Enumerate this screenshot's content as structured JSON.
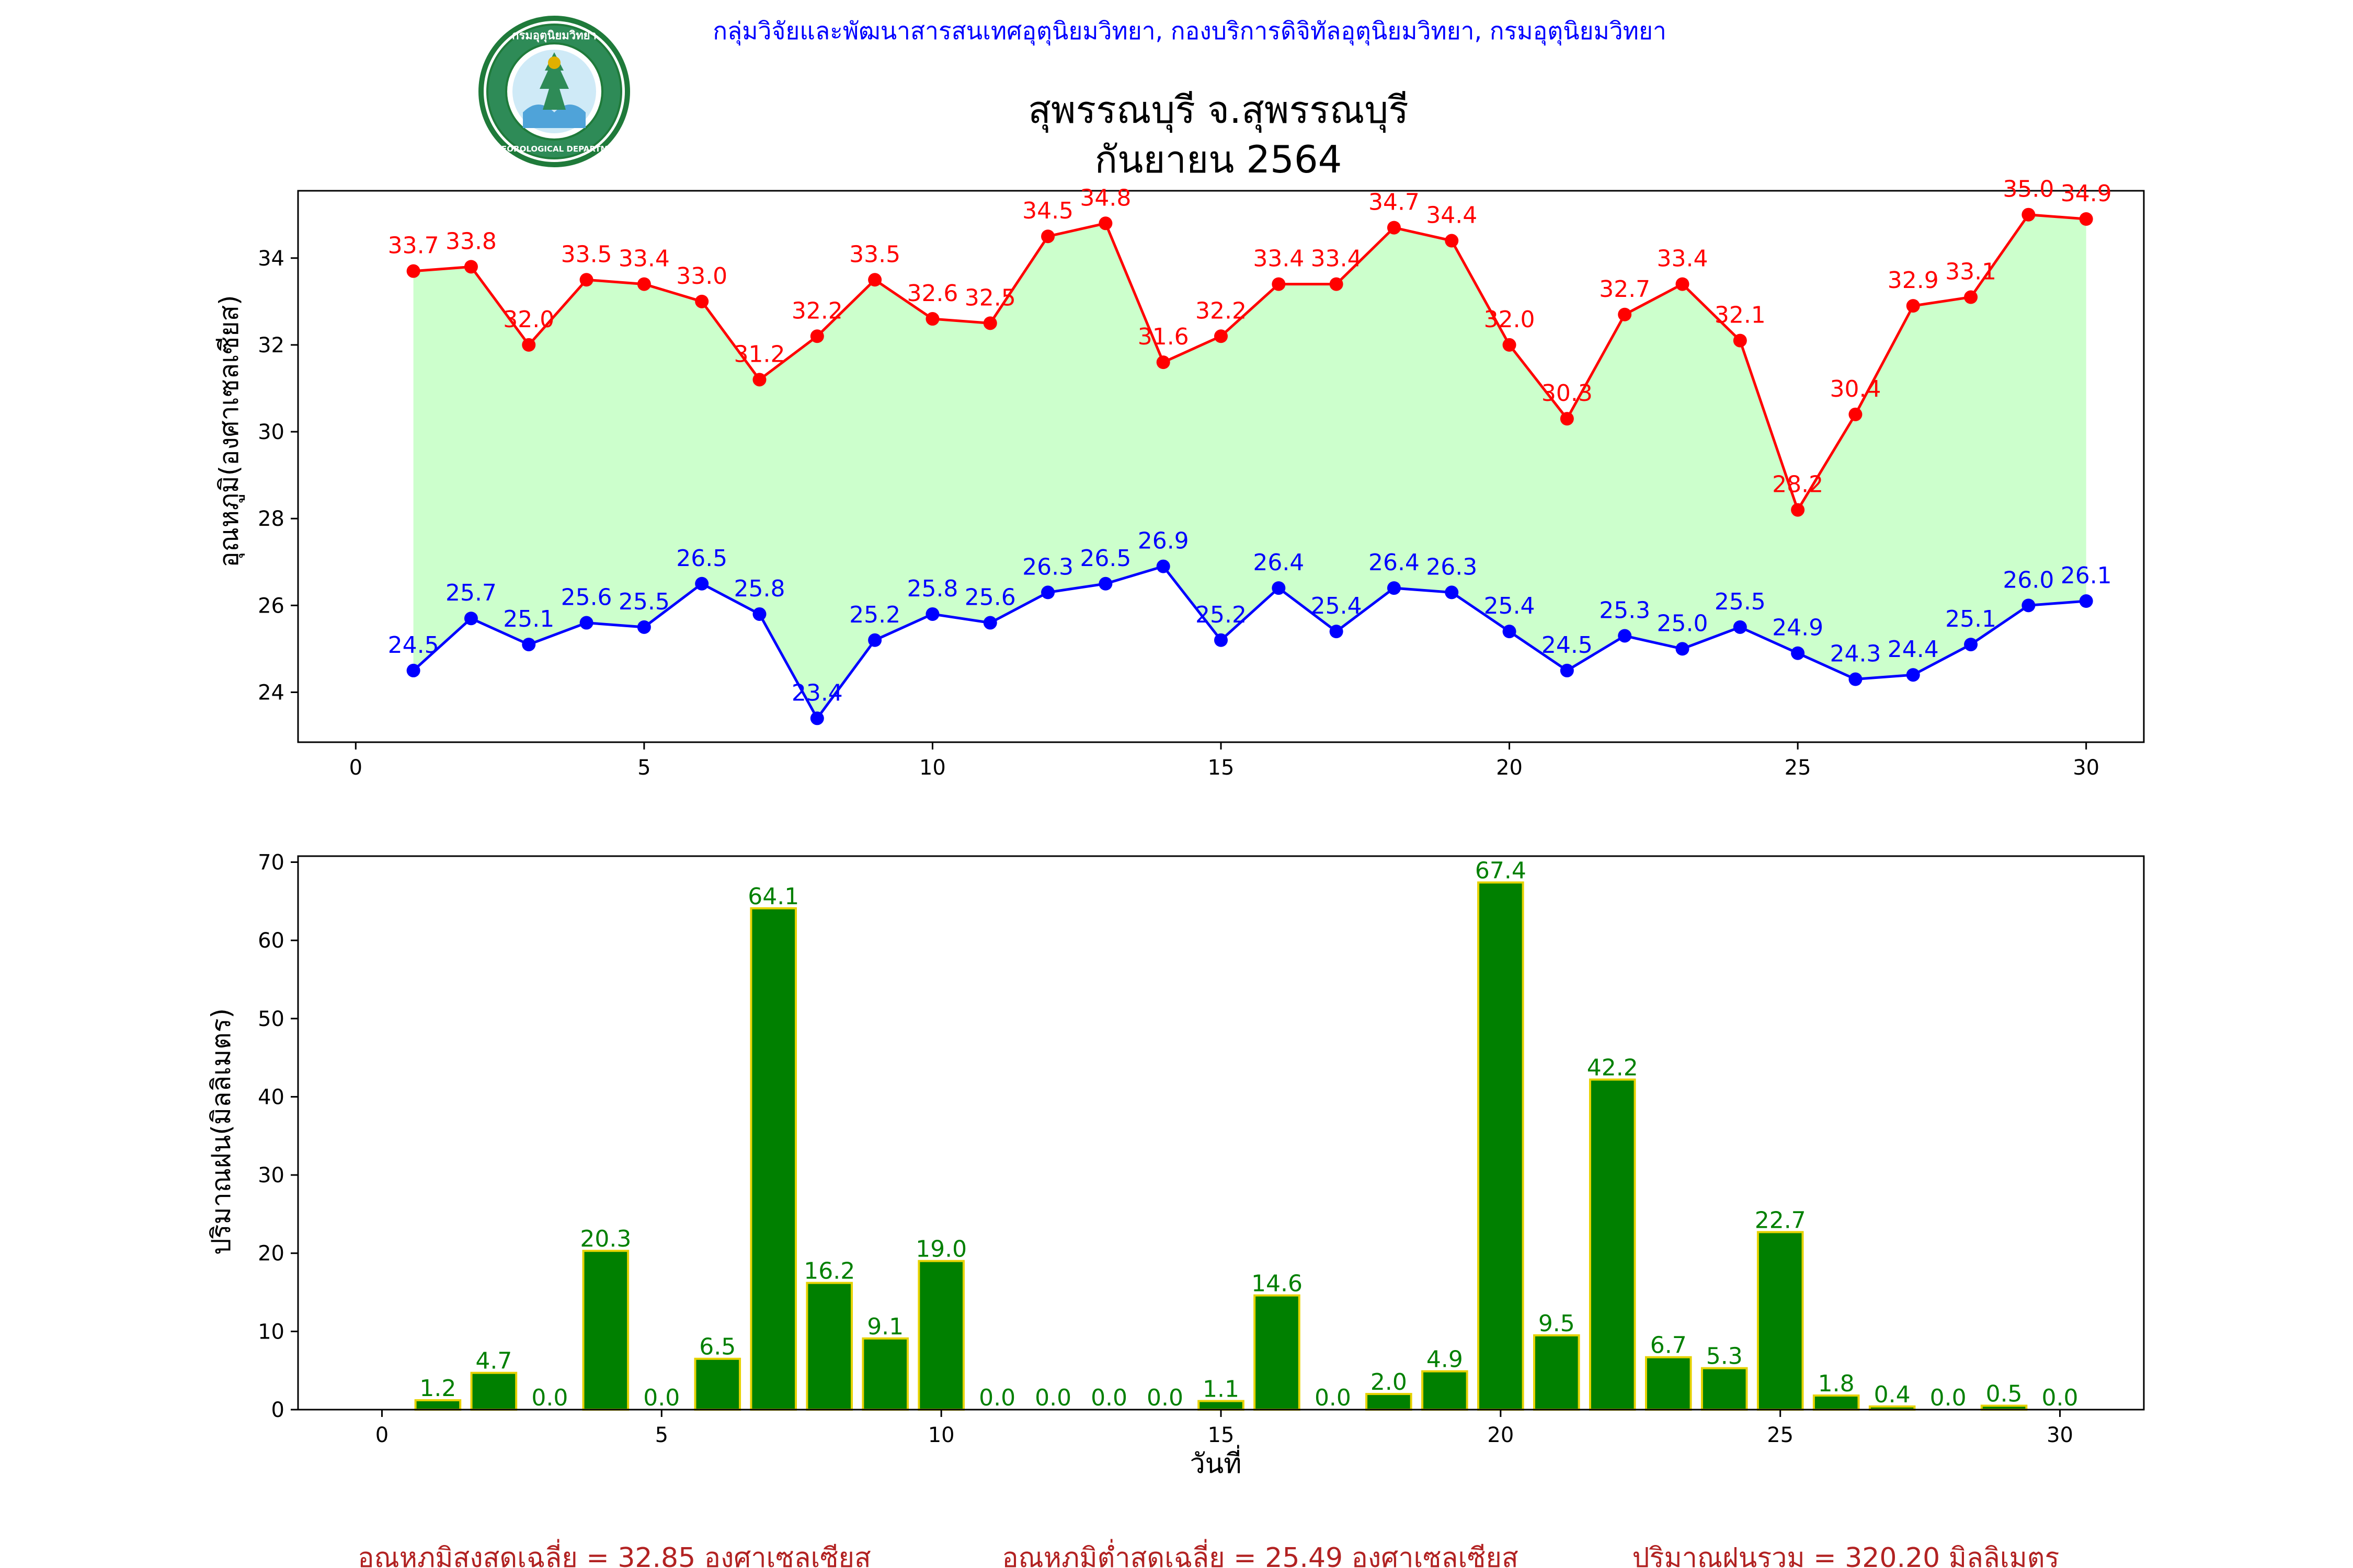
{
  "header": {
    "org_line": "กลุ่มวิจัยและพัฒนาสารสนเทศอุตุนิยมวิทยา, กองบริการดิจิทัลอุตุนิยมวิทยา, กรมอุตุนิยมวิทยา",
    "title_line1": "สุพรรณบุรี จ.สุพรรณบุรี",
    "title_line2": "กันยายน 2564",
    "logo_top_text": "กรมอุตุนิยมวิทยา",
    "logo_bottom_text": "METEOROLOGICAL DEPARTMENT"
  },
  "colors": {
    "max_temp": "#ff0000",
    "min_temp": "#0000ff",
    "fill": "#ccffcc",
    "rain_bar": "#008000",
    "rain_edge": "#e6d200",
    "rain_label": "#008000",
    "org_line": "#0000ff",
    "footer": "#b22222"
  },
  "chart_data": [
    {
      "type": "line",
      "ylabel": "อุณหภูมิ(องศาเซลเซียส)",
      "xlim": [
        -1,
        31
      ],
      "ylim": [
        22.85,
        35.55
      ],
      "xticks": [
        0,
        5,
        10,
        15,
        20,
        25,
        30
      ],
      "yticks": [
        24,
        26,
        28,
        30,
        32,
        34
      ],
      "x": [
        1,
        2,
        3,
        4,
        5,
        6,
        7,
        8,
        9,
        10,
        11,
        12,
        13,
        14,
        15,
        16,
        17,
        18,
        19,
        20,
        21,
        22,
        23,
        24,
        25,
        26,
        27,
        28,
        29,
        30
      ],
      "series": [
        {
          "key": "max",
          "values": [
            33.7,
            33.8,
            32.0,
            33.5,
            33.4,
            33.0,
            31.2,
            32.2,
            33.5,
            32.6,
            32.5,
            34.5,
            34.8,
            31.6,
            32.2,
            33.4,
            33.4,
            34.7,
            34.4,
            32.0,
            30.3,
            32.7,
            33.4,
            32.1,
            28.2,
            30.4,
            32.9,
            33.1,
            35.0,
            34.9
          ]
        },
        {
          "key": "min",
          "values": [
            24.5,
            25.7,
            25.1,
            25.6,
            25.5,
            26.5,
            25.8,
            23.4,
            25.2,
            25.8,
            25.6,
            26.3,
            26.5,
            26.9,
            25.2,
            26.4,
            25.4,
            26.4,
            26.3,
            25.4,
            24.5,
            25.3,
            25.0,
            25.5,
            24.9,
            24.3,
            24.4,
            25.1,
            26.0,
            26.1
          ]
        }
      ],
      "fill_between": true
    },
    {
      "type": "bar",
      "ylabel": "ปริมาณฝน(มิลลิเมตร)",
      "xlabel": "วันที่",
      "xlim": [
        -1.5,
        31.5
      ],
      "ylim": [
        0,
        70.77
      ],
      "xticks": [
        0,
        5,
        10,
        15,
        20,
        25,
        30
      ],
      "yticks": [
        0,
        10,
        20,
        30,
        40,
        50,
        60,
        70
      ],
      "x": [
        1,
        2,
        3,
        4,
        5,
        6,
        7,
        8,
        9,
        10,
        11,
        12,
        13,
        14,
        15,
        16,
        17,
        18,
        19,
        20,
        21,
        22,
        23,
        24,
        25,
        26,
        27,
        28,
        29,
        30
      ],
      "values": [
        1.2,
        4.7,
        0.0,
        20.3,
        0.0,
        6.5,
        64.1,
        16.2,
        9.1,
        19.0,
        0.0,
        0.0,
        0.0,
        0.0,
        1.1,
        14.6,
        0.0,
        2.0,
        4.9,
        67.4,
        9.5,
        42.2,
        6.7,
        5.3,
        22.7,
        1.8,
        0.4,
        0.0,
        0.5,
        0.0
      ]
    }
  ],
  "footer": {
    "avg_max": "อุณหภูมิสูงสุดเฉลี่ย = 32.85 องศาเซลเซียส",
    "avg_min": "อุณหภูมิต่ำสุดเฉลี่ย = 25.49 องศาเซลเซียส",
    "total_rain": "ปริมาณฝนรวม = 320.20 มิลลิเมตร"
  }
}
